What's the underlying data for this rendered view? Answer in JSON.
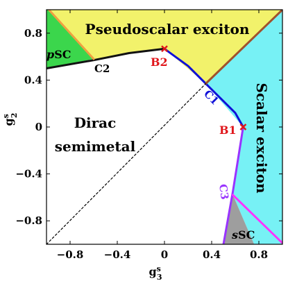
{
  "chart_data": {
    "type": "phase-diagram",
    "xlabel": "g_3^s",
    "ylabel": "g_2^s",
    "xlim": [
      -1,
      1
    ],
    "ylim": [
      -1,
      1
    ],
    "xticks": [
      -0.8,
      -0.4,
      0,
      0.4,
      0.8
    ],
    "yticks": [
      -0.8,
      -0.4,
      0,
      0.4,
      0.8
    ],
    "xtick_labels": [
      "−0.8",
      "−0.4",
      "0",
      "0.4",
      "0.8"
    ],
    "ytick_labels": [
      "−0.8",
      "−0.4",
      "0",
      "0.4",
      "0.8"
    ],
    "axis_label_parts": {
      "x": {
        "base": "g",
        "sub": "3",
        "sup": "s"
      },
      "y": {
        "base": "g",
        "sub": "2",
        "sup": "s"
      }
    },
    "regions": [
      {
        "key": "pseudoscalar",
        "label": "Pseudoscalar exciton",
        "color": "#f2f26b",
        "polygon": [
          [
            -0.98,
            1
          ],
          [
            1,
            1
          ],
          [
            0.35,
            0.37
          ],
          [
            0,
            0.667
          ],
          [
            -0.6,
            0.58
          ]
        ]
      },
      {
        "key": "scalar",
        "label": "Scalar exciton",
        "color": "#77f1f5",
        "polygon": [
          [
            1,
            1
          ],
          [
            1,
            -1
          ],
          [
            0.76,
            -1
          ],
          [
            0.58,
            -0.58
          ],
          [
            0.667,
            0
          ],
          [
            0.35,
            0.37
          ]
        ]
      },
      {
        "key": "pSC",
        "label_prefix": "p",
        "label_suffix": "SC",
        "color": "#3bd64c",
        "polygon": [
          [
            -1,
            1
          ],
          [
            -0.98,
            1
          ],
          [
            -0.6,
            0.58
          ],
          [
            -1,
            0.5
          ]
        ]
      },
      {
        "key": "sSC",
        "label_prefix": "s",
        "label_suffix": "SC",
        "color": "#9e9e9e",
        "polygon": [
          [
            0.5,
            -1
          ],
          [
            0.58,
            -0.58
          ],
          [
            0.76,
            -1
          ]
        ]
      },
      {
        "key": "dirac",
        "label_lines": [
          "Dirac",
          "semimetal"
        ],
        "color": "#ffffff"
      }
    ],
    "boundaries": [
      {
        "key": "C2",
        "label": "C2",
        "color": "#111111",
        "points": [
          [
            -1,
            0.5
          ],
          [
            -0.6,
            0.57
          ],
          [
            -0.3,
            0.63
          ],
          [
            0,
            0.667
          ]
        ]
      },
      {
        "key": "C1",
        "label": "C1",
        "color": "#1010d8",
        "points": [
          [
            0,
            0.667
          ],
          [
            0.2,
            0.52
          ],
          [
            0.35,
            0.37
          ],
          [
            0.5,
            0.22
          ],
          [
            0.6,
            0.12
          ],
          [
            0.667,
            0
          ]
        ]
      },
      {
        "key": "C3",
        "label": "C3",
        "color": "#9933ff",
        "points": [
          [
            0.667,
            0
          ],
          [
            0.58,
            -0.55
          ],
          [
            0.5,
            -1
          ]
        ]
      },
      {
        "key": "pseudo_scalar_diag",
        "color": "#a0522d",
        "points": [
          [
            0.35,
            0.37
          ],
          [
            1,
            1
          ]
        ]
      },
      {
        "key": "pSC_edge",
        "color": "#f0a040",
        "points": [
          [
            -0.98,
            1
          ],
          [
            -0.6,
            0.58
          ]
        ]
      },
      {
        "key": "sSC_edge",
        "color": "#ff33ff",
        "points": [
          [
            0.58,
            -0.58
          ],
          [
            1,
            -0.99
          ]
        ]
      },
      {
        "key": "dashed_diag",
        "style": "dashed",
        "color": "#000000",
        "points": [
          [
            -1,
            -1
          ],
          [
            0.35,
            0.37
          ]
        ]
      }
    ],
    "points": [
      {
        "key": "B1",
        "label": "B1",
        "x": 0.667,
        "y": 0,
        "color": "#e0161b"
      },
      {
        "key": "B2",
        "label": "B2",
        "x": 0,
        "y": 0.667,
        "color": "#e0161b"
      }
    ]
  }
}
